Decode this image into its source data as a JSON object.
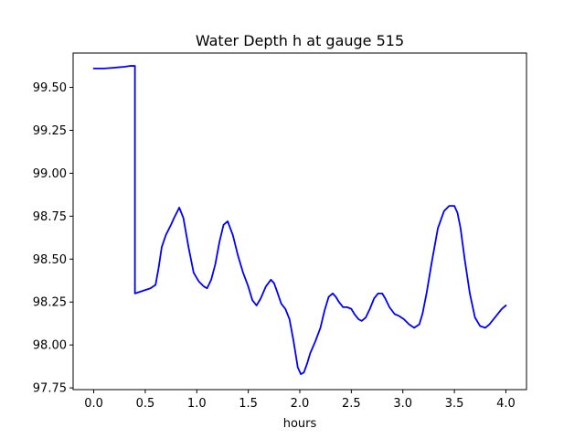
{
  "chart_data": {
    "type": "line",
    "title": "Water Depth h at gauge 515",
    "xlabel": "hours",
    "ylabel": "",
    "xlim": [
      -0.2,
      4.2
    ],
    "ylim": [
      97.74,
      99.7
    ],
    "xticks": [
      0.0,
      0.5,
      1.0,
      1.5,
      2.0,
      2.5,
      3.0,
      3.5,
      4.0
    ],
    "xtick_labels": [
      "0.0",
      "0.5",
      "1.0",
      "1.5",
      "2.0",
      "2.5",
      "3.0",
      "3.5",
      "4.0"
    ],
    "yticks": [
      97.75,
      98.0,
      98.25,
      98.5,
      98.75,
      99.0,
      99.25,
      99.5
    ],
    "ytick_labels": [
      "97.75",
      "98.00",
      "98.25",
      "98.50",
      "98.75",
      "99.00",
      "99.25",
      "99.50"
    ],
    "grid": false,
    "series": [
      {
        "color": "#0000ff",
        "x": [
          0.0,
          0.1,
          0.2,
          0.3,
          0.35,
          0.4,
          0.4,
          0.45,
          0.5,
          0.55,
          0.6,
          0.63,
          0.66,
          0.7,
          0.75,
          0.78,
          0.83,
          0.87,
          0.92,
          0.97,
          1.02,
          1.07,
          1.1,
          1.14,
          1.18,
          1.22,
          1.26,
          1.3,
          1.35,
          1.4,
          1.45,
          1.5,
          1.54,
          1.58,
          1.62,
          1.67,
          1.72,
          1.75,
          1.78,
          1.82,
          1.86,
          1.9,
          1.94,
          1.98,
          2.01,
          2.04,
          2.07,
          2.1,
          2.15,
          2.2,
          2.24,
          2.28,
          2.32,
          2.35,
          2.38,
          2.42,
          2.46,
          2.5,
          2.53,
          2.57,
          2.6,
          2.64,
          2.68,
          2.72,
          2.76,
          2.8,
          2.83,
          2.87,
          2.92,
          2.96,
          3.01,
          3.06,
          3.11,
          3.16,
          3.19,
          3.23,
          3.28,
          3.34,
          3.4,
          3.45,
          3.5,
          3.53,
          3.56,
          3.6,
          3.65,
          3.7,
          3.75,
          3.8,
          3.84,
          3.88,
          3.92,
          3.96,
          4.0
        ],
        "y": [
          99.61,
          99.61,
          99.615,
          99.62,
          99.625,
          99.625,
          98.3,
          98.31,
          98.32,
          98.33,
          98.35,
          98.45,
          98.57,
          98.64,
          98.7,
          98.74,
          98.8,
          98.74,
          98.57,
          98.42,
          98.37,
          98.34,
          98.33,
          98.38,
          98.47,
          98.6,
          98.7,
          98.72,
          98.64,
          98.52,
          98.42,
          98.34,
          98.26,
          98.23,
          98.27,
          98.34,
          98.38,
          98.36,
          98.31,
          98.24,
          98.21,
          98.15,
          98.02,
          97.87,
          97.83,
          97.84,
          97.89,
          97.95,
          98.02,
          98.1,
          98.2,
          98.28,
          98.3,
          98.28,
          98.25,
          98.22,
          98.22,
          98.21,
          98.18,
          98.15,
          98.14,
          98.16,
          98.21,
          98.27,
          98.3,
          98.3,
          98.27,
          98.22,
          98.18,
          98.17,
          98.15,
          98.12,
          98.1,
          98.12,
          98.18,
          98.3,
          98.48,
          98.68,
          98.78,
          98.81,
          98.81,
          98.77,
          98.68,
          98.5,
          98.3,
          98.16,
          98.11,
          98.1,
          98.12,
          98.15,
          98.18,
          98.21,
          98.23
        ]
      }
    ]
  }
}
